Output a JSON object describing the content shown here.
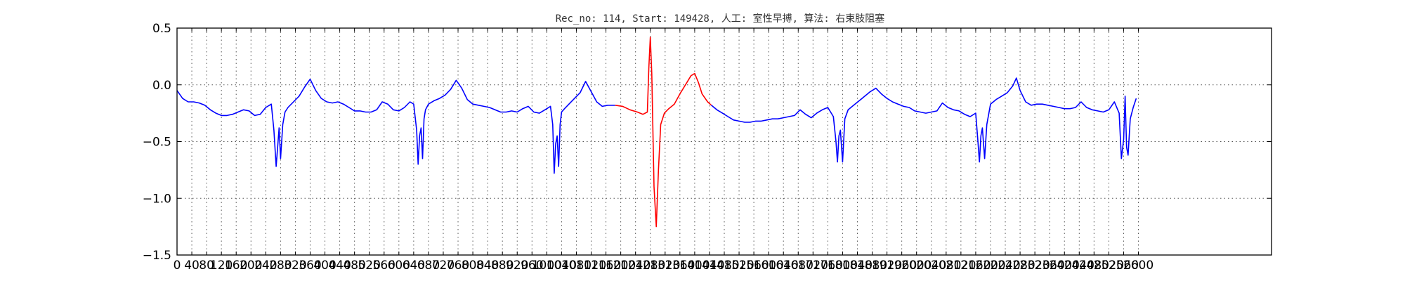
{
  "chart_data": {
    "type": "line",
    "title": "Rec_no: 114, Start: 149428, 人工: 室性早搏, 算法: 右束肢阻塞",
    "xlabel": "",
    "ylabel": "",
    "xlim": [
      0,
      2960
    ],
    "ylim": [
      -1.5,
      0.5
    ],
    "grid": true,
    "x_tick_values": [
      0,
      40,
      80,
      120,
      160,
      200,
      240,
      280,
      320,
      360,
      400,
      440,
      480,
      520,
      560,
      600,
      640,
      680,
      720,
      760,
      800,
      840,
      880,
      920,
      960,
      1000,
      1040,
      1080,
      1120,
      1160,
      1200,
      1240,
      1280,
      1320,
      1360,
      1400,
      1440,
      1480,
      1520,
      1560,
      1600,
      1640,
      1680,
      1720,
      1760,
      1800,
      1840,
      1880,
      1920,
      1960,
      2000,
      2040,
      2080,
      2120,
      2160,
      2200,
      2240,
      2280,
      2320,
      2360,
      2400,
      2440,
      2480,
      2520,
      2560,
      2600
    ],
    "y_tick_values": [
      0.5,
      0.0,
      -0.5,
      -1.0,
      -1.5
    ],
    "y_tick_labels": [
      "0.5",
      "0.0",
      "−0.5",
      "−1.0",
      "−1.5"
    ],
    "series": [
      {
        "color": "#0000ff",
        "x": [
          0,
          15,
          30,
          45,
          60,
          75,
          90,
          105,
          120,
          135,
          150,
          165,
          180,
          195,
          210,
          225,
          240,
          255,
          262,
          268,
          272,
          276,
          280,
          286,
          292,
          300,
          315,
          330,
          345,
          360,
          375,
          390,
          405,
          420,
          435,
          450,
          465,
          480,
          495,
          510,
          525,
          540,
          555,
          570,
          585,
          600,
          615,
          630,
          640,
          648,
          652,
          656,
          660,
          664,
          668,
          672,
          680,
          695,
          710,
          725,
          740,
          755,
          770,
          785,
          800,
          815,
          830,
          845,
          860,
          875,
          890,
          905,
          920,
          935,
          950,
          965,
          980,
          995,
          1010,
          1016,
          1020,
          1024,
          1028,
          1032,
          1036,
          1040,
          1048,
          1060,
          1075,
          1090,
          1105,
          1120,
          1135,
          1150,
          1165,
          1185
        ],
        "y": [
          -0.05,
          -0.12,
          -0.15,
          -0.15,
          -0.16,
          -0.18,
          -0.22,
          -0.25,
          -0.27,
          -0.27,
          -0.26,
          -0.24,
          -0.22,
          -0.23,
          -0.27,
          -0.26,
          -0.2,
          -0.17,
          -0.4,
          -0.72,
          -0.55,
          -0.38,
          -0.65,
          -0.35,
          -0.24,
          -0.2,
          -0.15,
          -0.1,
          -0.02,
          0.05,
          -0.05,
          -0.12,
          -0.15,
          -0.16,
          -0.15,
          -0.17,
          -0.2,
          -0.23,
          -0.23,
          -0.24,
          -0.24,
          -0.22,
          -0.15,
          -0.17,
          -0.22,
          -0.23,
          -0.2,
          -0.15,
          -0.17,
          -0.4,
          -0.7,
          -0.45,
          -0.38,
          -0.65,
          -0.3,
          -0.22,
          -0.17,
          -0.14,
          -0.12,
          -0.09,
          -0.04,
          0.04,
          -0.03,
          -0.13,
          -0.17,
          -0.18,
          -0.19,
          -0.2,
          -0.22,
          -0.24,
          -0.24,
          -0.23,
          -0.24,
          -0.21,
          -0.19,
          -0.24,
          -0.25,
          -0.22,
          -0.19,
          -0.35,
          -0.78,
          -0.52,
          -0.45,
          -0.72,
          -0.35,
          -0.24,
          -0.21,
          -0.17,
          -0.12,
          -0.07,
          0.03,
          -0.06,
          -0.15,
          -0.19,
          -0.18,
          -0.18
        ]
      },
      {
        "color": "#ff0000",
        "x": [
          1185,
          1205,
          1225,
          1245,
          1260,
          1272,
          1276,
          1280,
          1284,
          1290,
          1296,
          1302,
          1308,
          1318,
          1330,
          1345,
          1360,
          1375,
          1390,
          1400,
          1410,
          1420,
          1435,
          1445
        ],
        "y": [
          -0.18,
          -0.19,
          -0.22,
          -0.24,
          -0.26,
          -0.24,
          0.15,
          0.42,
          0.1,
          -0.9,
          -1.25,
          -0.75,
          -0.35,
          -0.25,
          -0.21,
          -0.17,
          -0.08,
          0.0,
          0.08,
          0.1,
          0.02,
          -0.08,
          -0.15,
          -0.18
        ]
      },
      {
        "color": "#0000ff",
        "x": [
          1445,
          1460,
          1475,
          1490,
          1505,
          1520,
          1535,
          1550,
          1565,
          1580,
          1595,
          1610,
          1625,
          1640,
          1655,
          1670,
          1685,
          1700,
          1715,
          1730,
          1745,
          1760,
          1775,
          1782,
          1786,
          1790,
          1794,
          1800,
          1806,
          1815,
          1830,
          1845,
          1860,
          1875,
          1890,
          1905,
          1920,
          1935,
          1950,
          1965,
          1980,
          1995,
          2010,
          2025,
          2040,
          2055,
          2070,
          2085,
          2100,
          2115,
          2130,
          2145,
          2160,
          2166,
          2170,
          2174,
          2178,
          2184,
          2190,
          2200,
          2215,
          2230,
          2245,
          2260,
          2270,
          2280,
          2295,
          2310,
          2325,
          2340,
          2355,
          2370,
          2385,
          2400,
          2415,
          2430,
          2445,
          2460,
          2475,
          2490,
          2505,
          2520,
          2535,
          2548,
          2554,
          2560,
          2564,
          2568,
          2572,
          2578,
          2586,
          2594
        ],
        "y": [
          -0.18,
          -0.22,
          -0.25,
          -0.28,
          -0.31,
          -0.32,
          -0.33,
          -0.33,
          -0.32,
          -0.32,
          -0.31,
          -0.3,
          -0.3,
          -0.29,
          -0.28,
          -0.27,
          -0.22,
          -0.26,
          -0.29,
          -0.25,
          -0.22,
          -0.2,
          -0.28,
          -0.5,
          -0.68,
          -0.45,
          -0.4,
          -0.68,
          -0.3,
          -0.22,
          -0.18,
          -0.14,
          -0.1,
          -0.06,
          -0.03,
          -0.08,
          -0.12,
          -0.15,
          -0.17,
          -0.19,
          -0.2,
          -0.23,
          -0.24,
          -0.25,
          -0.24,
          -0.23,
          -0.16,
          -0.2,
          -0.22,
          -0.23,
          -0.26,
          -0.28,
          -0.25,
          -0.5,
          -0.68,
          -0.45,
          -0.38,
          -0.65,
          -0.35,
          -0.17,
          -0.13,
          -0.1,
          -0.07,
          -0.01,
          0.06,
          -0.05,
          -0.15,
          -0.18,
          -0.17,
          -0.17,
          -0.18,
          -0.19,
          -0.2,
          -0.21,
          -0.21,
          -0.2,
          -0.15,
          -0.2,
          -0.22,
          -0.23,
          -0.24,
          -0.22,
          -0.15,
          -0.25,
          -0.65,
          -0.48,
          -0.1,
          -0.55,
          -0.62,
          -0.3,
          -0.2,
          -0.12
        ]
      }
    ]
  }
}
